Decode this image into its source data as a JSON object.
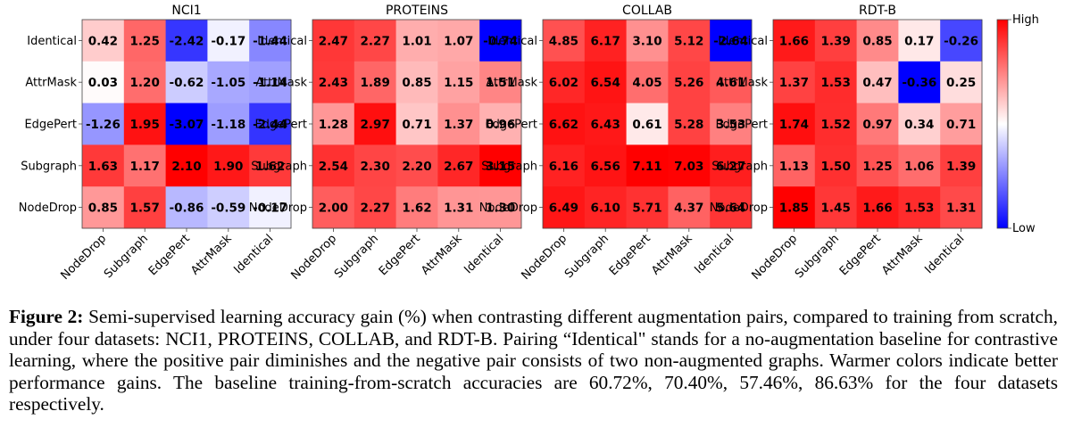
{
  "chart_data": {
    "type": "heatmap",
    "row_labels": [
      "Identical",
      "AttrMask",
      "EdgePert",
      "Subgraph",
      "NodeDrop"
    ],
    "col_labels": [
      "NodeDrop",
      "Subgraph",
      "EdgePert",
      "AttrMask",
      "Identical"
    ],
    "panels": [
      {
        "title": "NCI1",
        "values": [
          [
            0.42,
            1.25,
            -2.42,
            -0.17,
            -1.44
          ],
          [
            0.03,
            1.2,
            -0.62,
            -1.05,
            -1.14
          ],
          [
            -1.26,
            1.95,
            -3.07,
            -1.18,
            -2.44
          ],
          [
            1.63,
            1.17,
            2.1,
            1.9,
            1.62
          ],
          [
            0.85,
            1.57,
            -0.86,
            -0.59,
            -0.17
          ]
        ]
      },
      {
        "title": "PROTEINS",
        "values": [
          [
            2.47,
            2.27,
            1.01,
            1.07,
            -0.74
          ],
          [
            2.43,
            1.89,
            0.85,
            1.15,
            1.51
          ],
          [
            1.28,
            2.97,
            0.71,
            1.37,
            0.96
          ],
          [
            2.54,
            2.3,
            2.2,
            2.67,
            3.15
          ],
          [
            2.0,
            2.27,
            1.62,
            1.31,
            1.3
          ]
        ]
      },
      {
        "title": "COLLAB",
        "values": [
          [
            4.85,
            6.17,
            3.1,
            5.12,
            -2.64
          ],
          [
            6.02,
            6.54,
            4.05,
            5.26,
            4.61
          ],
          [
            6.62,
            6.43,
            0.61,
            5.28,
            3.53
          ],
          [
            6.16,
            6.56,
            7.11,
            7.03,
            6.27
          ],
          [
            6.49,
            6.1,
            5.71,
            4.37,
            5.64
          ]
        ]
      },
      {
        "title": "RDT-B",
        "values": [
          [
            1.66,
            1.39,
            0.85,
            0.17,
            -0.26
          ],
          [
            1.37,
            1.53,
            0.47,
            -0.36,
            0.25
          ],
          [
            1.74,
            1.52,
            0.97,
            0.34,
            0.71
          ],
          [
            1.13,
            1.5,
            1.25,
            1.06,
            1.39
          ],
          [
            1.85,
            1.45,
            1.66,
            1.53,
            1.31
          ]
        ]
      }
    ],
    "colorbar": {
      "high_label": "High",
      "low_label": "Low",
      "colormap": "bwr"
    },
    "colors": {
      "low": "#0000ff",
      "mid": "#ffffff",
      "high": "#ff0000"
    }
  },
  "caption": {
    "label": "Figure 2:",
    "text": " Semi-supervised learning accuracy gain (%) when contrasting different augmentation pairs, compared to training from scratch, under four datasets: NCI1, PROTEINS, COLLAB, and RDT-B. Pairing “Identical\" stands for a no-augmentation baseline for contrastive learning, where the positive pair diminishes and the negative pair consists of two non-augmented graphs. Warmer colors indicate better performance gains. The baseline training-from-scratch accuracies are 60.72%, 70.40%, 57.46%, 86.63% for the four datasets respectively."
  }
}
